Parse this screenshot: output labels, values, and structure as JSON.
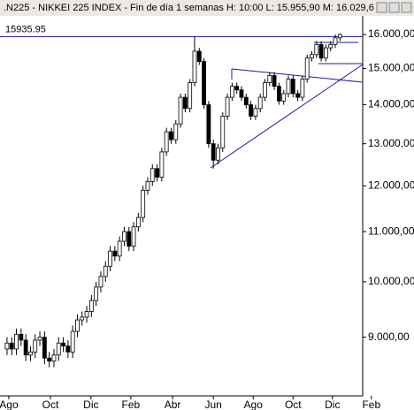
{
  "chart_data": {
    "type": "candlestick",
    "title": ".N225 - NIKKEI 225 INDEX - Fin de día 1 semanas  H: 10:00  L: 15.955,90  M: 16.029,6",
    "x": [
      0,
      1,
      2,
      3,
      4,
      5,
      6,
      7,
      8,
      9,
      10,
      11,
      12,
      13,
      14,
      15,
      16,
      17,
      18,
      19,
      20,
      21,
      22,
      23,
      24,
      25,
      26,
      27,
      28,
      29,
      30,
      31,
      32,
      33,
      34,
      35,
      36,
      37,
      38,
      39,
      40,
      41,
      42,
      43,
      44,
      45,
      46,
      47,
      48,
      49,
      50,
      51,
      52,
      53,
      54,
      55,
      56,
      57,
      58,
      59,
      60,
      61,
      62,
      63,
      64,
      65,
      66,
      67,
      68,
      69,
      70,
      71
    ],
    "open": [
      8800,
      8900,
      8800,
      9050,
      8950,
      8700,
      8750,
      8950,
      9000,
      8650,
      8600,
      8700,
      8900,
      8850,
      8750,
      9100,
      9300,
      9350,
      9450,
      9650,
      9900,
      10100,
      10300,
      10600,
      10500,
      10800,
      11000,
      10700,
      11100,
      11300,
      11900,
      12100,
      12400,
      12200,
      12800,
      13300,
      13100,
      13500,
      14200,
      13900,
      14600,
      15500,
      15200,
      14000,
      13000,
      12600,
      12900,
      13700,
      14200,
      14500,
      14400,
      14200,
      14000,
      13700,
      13900,
      14200,
      14600,
      14800,
      14500,
      14100,
      14300,
      14700,
      14300,
      14200,
      14700,
      15300,
      15400,
      15700,
      15300,
      15600,
      15700,
      15900
    ],
    "high": [
      9000,
      9000,
      9150,
      9150,
      9050,
      8850,
      9050,
      9100,
      9100,
      8750,
      8800,
      9000,
      9000,
      8950,
      9200,
      9400,
      9450,
      9550,
      9750,
      10000,
      10200,
      10400,
      10700,
      10700,
      10900,
      11100,
      11100,
      11200,
      11400,
      12000,
      12200,
      12500,
      12500,
      12900,
      13400,
      13400,
      13600,
      14300,
      14300,
      14700,
      15936,
      15600,
      15300,
      14100,
      13100,
      13000,
      13800,
      14300,
      14600,
      14600,
      14500,
      14300,
      14100,
      14000,
      14300,
      14700,
      14900,
      14900,
      14600,
      14400,
      14800,
      14800,
      14400,
      14800,
      15400,
      15500,
      15800,
      15800,
      15700,
      15800,
      16000,
      16030
    ],
    "low": [
      8700,
      8700,
      8700,
      8850,
      8600,
      8600,
      8650,
      8850,
      8550,
      8500,
      8500,
      8600,
      8750,
      8650,
      8650,
      9000,
      9200,
      9250,
      9350,
      9550,
      9800,
      10000,
      10200,
      10400,
      10400,
      10700,
      10600,
      10600,
      11000,
      11200,
      11800,
      12000,
      12100,
      12100,
      12700,
      13000,
      13000,
      13400,
      13800,
      13800,
      14500,
      15100,
      13900,
      12900,
      12400,
      12500,
      12800,
      13600,
      14100,
      14300,
      14100,
      13900,
      13600,
      13600,
      13800,
      14100,
      14500,
      14400,
      14000,
      14000,
      14200,
      14200,
      14100,
      14100,
      14600,
      15200,
      15300,
      15200,
      15200,
      15500,
      15600,
      15800
    ],
    "close": [
      8900,
      8800,
      9050,
      8950,
      8700,
      8750,
      8950,
      9000,
      8650,
      8600,
      8700,
      8900,
      8850,
      8750,
      9100,
      9300,
      9350,
      9450,
      9650,
      9900,
      10100,
      10300,
      10600,
      10500,
      10800,
      11000,
      10700,
      11100,
      11300,
      11900,
      12100,
      12400,
      12200,
      12800,
      13300,
      13100,
      13500,
      14200,
      13900,
      14600,
      15500,
      15200,
      14000,
      13000,
      12600,
      12900,
      13700,
      14200,
      14500,
      14400,
      14200,
      14000,
      13700,
      13900,
      14200,
      14600,
      14800,
      14500,
      14100,
      14300,
      14700,
      14300,
      14200,
      14700,
      15300,
      15400,
      15700,
      15300,
      15600,
      15700,
      15900,
      16000
    ],
    "xlim": [
      -1.5,
      75.85
    ],
    "xticks": [
      {
        "value": 0.38,
        "label": "Ago"
      },
      {
        "value": 9.25,
        "label": "Oct"
      },
      {
        "value": 17.9,
        "label": "Dic"
      },
      {
        "value": 26.4,
        "label": "Feb"
      },
      {
        "value": 35.3,
        "label": "Abr"
      },
      {
        "value": 44,
        "label": "Jun"
      },
      {
        "value": 52.5,
        "label": "Ago"
      },
      {
        "value": 61,
        "label": "Oct"
      },
      {
        "value": 69.4,
        "label": "Dic"
      },
      {
        "value": 77.7,
        "label": "Feb"
      }
    ],
    "ylim": [
      8050,
      16800
    ],
    "log_scale": true,
    "yticks": [
      {
        "value": 9000,
        "label": "9.000,00"
      },
      {
        "value": 10000,
        "label": "10.000,00"
      },
      {
        "value": 11000,
        "label": "11.000,00"
      },
      {
        "value": 12000,
        "label": "12.000,00"
      },
      {
        "value": 13000,
        "label": "13.000,00"
      },
      {
        "value": 14000,
        "label": "14.000,00"
      },
      {
        "value": 15000,
        "label": "15.000,00"
      },
      {
        "value": 16000,
        "label": "16.000,00"
      }
    ],
    "ref_line": 15935.95,
    "ref_color": "#1a1aa0",
    "up_color": "#ffffff",
    "down_color": "#000000"
  }
}
